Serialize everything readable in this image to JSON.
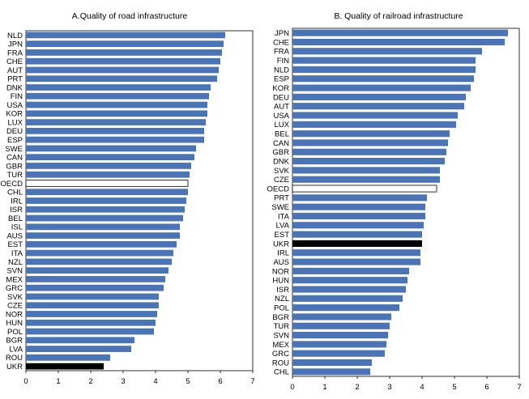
{
  "colors": {
    "bar": "#4a74b5",
    "highlight": "#000000",
    "oecd": "#ffffff",
    "frame": "#000000",
    "grid": "#d9d9d9"
  },
  "chart_data": [
    {
      "type": "bar",
      "orientation": "horizontal",
      "title": "A.Quality of road infrastructure",
      "xlim": [
        0,
        7
      ],
      "xticks": [
        0,
        1,
        2,
        3,
        4,
        5,
        6,
        7
      ],
      "highlight": "UKR",
      "reference": "OECD",
      "categories": [
        "NLD",
        "JPN",
        "FRA",
        "CHE",
        "AUT",
        "PRT",
        "DNK",
        "FIN",
        "USA",
        "KOR",
        "LUX",
        "DEU",
        "ESP",
        "SWE",
        "CAN",
        "GBR",
        "TUR",
        "OECD",
        "CHL",
        "IRL",
        "ISR",
        "BEL",
        "ISL",
        "AUS",
        "EST",
        "ITA",
        "NZL",
        "SVN",
        "MEX",
        "GRC",
        "SVK",
        "CZE",
        "NOR",
        "HUN",
        "POL",
        "BGR",
        "LVA",
        "ROU",
        "UKR"
      ],
      "values": [
        6.15,
        6.1,
        6.05,
        6.0,
        5.95,
        5.9,
        5.7,
        5.65,
        5.6,
        5.6,
        5.55,
        5.5,
        5.5,
        5.25,
        5.2,
        5.1,
        5.05,
        5.0,
        5.0,
        4.95,
        4.9,
        4.85,
        4.75,
        4.75,
        4.65,
        4.55,
        4.5,
        4.4,
        4.3,
        4.25,
        4.1,
        4.1,
        4.05,
        4.0,
        3.95,
        3.35,
        3.25,
        2.6,
        2.4
      ]
    },
    {
      "type": "bar",
      "orientation": "horizontal",
      "title": "B. Quality of railroad  infrastructure",
      "xlim": [
        0,
        7
      ],
      "xticks": [
        0,
        1,
        2,
        3,
        4,
        5,
        6,
        7
      ],
      "highlight": "UKR",
      "reference": "OECD",
      "categories": [
        "JPN",
        "CHE",
        "FRA",
        "FIN",
        "NLD",
        "ESP",
        "KOR",
        "DEU",
        "AUT",
        "USA",
        "LUX",
        "BEL",
        "CAN",
        "GBR",
        "DNK",
        "SVK",
        "CZE",
        "OECD",
        "PRT",
        "SWE",
        "ITA",
        "LVA",
        "EST",
        "UKR",
        "IRL",
        "AUS",
        "NOR",
        "HUN",
        "ISR",
        "NZL",
        "POL",
        "BGR",
        "TUR",
        "SVN",
        "MEX",
        "GRC",
        "ROU",
        "CHL"
      ],
      "values": [
        6.65,
        6.55,
        5.85,
        5.65,
        5.65,
        5.6,
        5.5,
        5.35,
        5.3,
        5.1,
        5.05,
        4.85,
        4.8,
        4.75,
        4.7,
        4.55,
        4.55,
        4.45,
        4.15,
        4.1,
        4.1,
        4.05,
        4.0,
        4.0,
        3.95,
        3.95,
        3.6,
        3.55,
        3.5,
        3.4,
        3.3,
        3.05,
        3.0,
        2.95,
        2.9,
        2.85,
        2.45,
        2.4
      ]
    }
  ]
}
